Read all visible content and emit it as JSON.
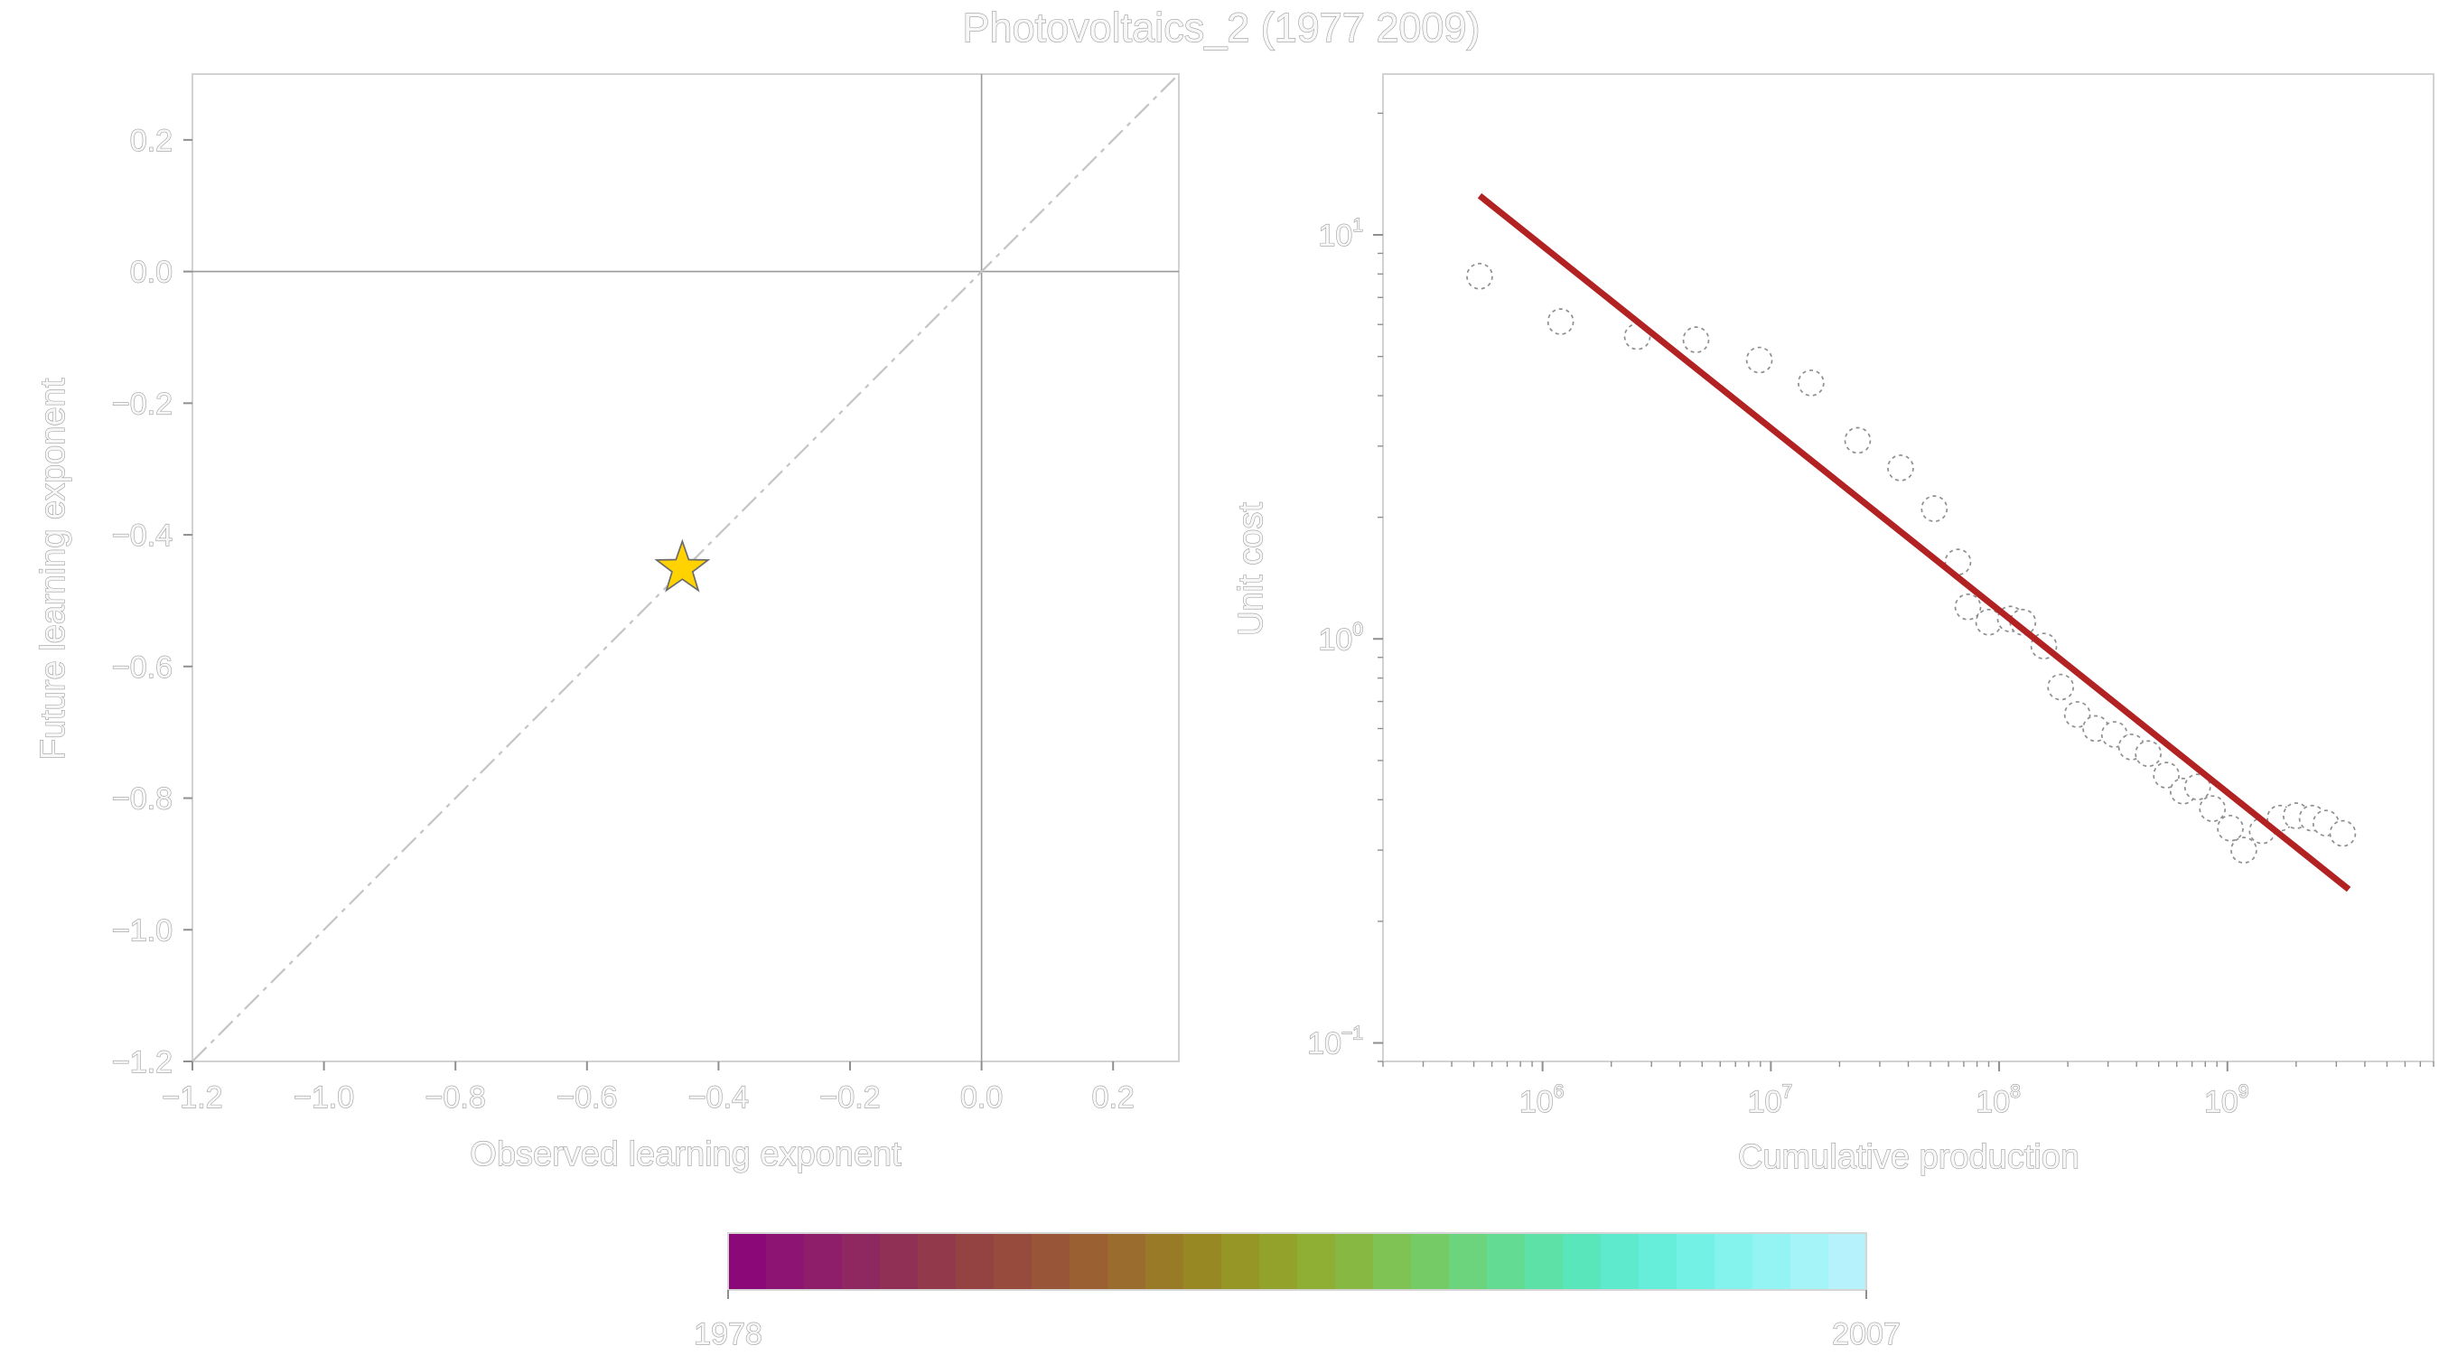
{
  "title": "Photovoltaics_2 (1977 2009)",
  "colors": {
    "fit_line": "#b22222",
    "star": "#ffd200",
    "reference_line": "#9a9a9a",
    "text": "#f7f7f7",
    "text_outline": "#9a9a9a"
  },
  "chart_data": [
    {
      "type": "scatter",
      "xlabel": "Observed learning exponent",
      "ylabel": "Future learning exponent",
      "xlim": [
        -1.2,
        0.3
      ],
      "ylim": [
        -1.2,
        0.3
      ],
      "xticks": [
        "−1.2",
        "−1.0",
        "−0.8",
        "−0.6",
        "−0.4",
        "−0.2",
        "0.0",
        "0.2"
      ],
      "xtick_values": [
        -1.2,
        -1.0,
        -0.8,
        -0.6,
        -0.4,
        -0.2,
        0.0,
        0.2
      ],
      "yticks": [
        "−1.2",
        "−1.0",
        "−0.8",
        "−0.6",
        "−0.4",
        "−0.2",
        "0.0",
        "0.2"
      ],
      "ytick_values": [
        -1.2,
        -1.0,
        -0.8,
        -0.6,
        -0.4,
        -0.2,
        0.0,
        0.2
      ],
      "reference_lines": [
        {
          "kind": "horizontal",
          "value": 0.0
        },
        {
          "kind": "vertical",
          "value": 0.0
        },
        {
          "kind": "diagonal",
          "from": [
            -1.2,
            -1.2
          ],
          "to": [
            0.3,
            0.3
          ]
        }
      ],
      "points": [
        {
          "x": -0.455,
          "y": -0.451,
          "marker": "star",
          "color": "#ffd200"
        }
      ],
      "grid": false,
      "legend": false
    },
    {
      "type": "scatter",
      "xlabel": "Cumulative production",
      "ylabel": "Unit cost",
      "xscale": "log",
      "yscale": "log",
      "xlim": [
        200000,
        8000000000
      ],
      "ylim": [
        0.09,
        25
      ],
      "xticks": [
        {
          "base": "10",
          "exp": "6",
          "value": 1000000
        },
        {
          "base": "10",
          "exp": "7",
          "value": 10000000
        },
        {
          "base": "10",
          "exp": "8",
          "value": 100000000
        },
        {
          "base": "10",
          "exp": "9",
          "value": 1000000000
        }
      ],
      "yticks": [
        {
          "base": "10",
          "exp": "−1",
          "value": 0.1
        },
        {
          "base": "10",
          "exp": "0",
          "value": 1
        },
        {
          "base": "10",
          "exp": "1",
          "value": 10
        }
      ],
      "points": [
        {
          "x": 530000,
          "y": 7.9
        },
        {
          "x": 1200000,
          "y": 6.1
        },
        {
          "x": 2600000,
          "y": 5.6
        },
        {
          "x": 4700000,
          "y": 5.5
        },
        {
          "x": 8900000,
          "y": 4.9
        },
        {
          "x": 15000000,
          "y": 4.3
        },
        {
          "x": 24000000,
          "y": 3.1
        },
        {
          "x": 37000000,
          "y": 2.65
        },
        {
          "x": 52000000,
          "y": 2.1
        },
        {
          "x": 66000000,
          "y": 1.55
        },
        {
          "x": 73000000,
          "y": 1.2
        },
        {
          "x": 90000000,
          "y": 1.1
        },
        {
          "x": 112000000,
          "y": 1.12
        },
        {
          "x": 127000000,
          "y": 1.1
        },
        {
          "x": 157000000,
          "y": 0.96
        },
        {
          "x": 186000000,
          "y": 0.76
        },
        {
          "x": 220000000,
          "y": 0.65
        },
        {
          "x": 265000000,
          "y": 0.6
        },
        {
          "x": 320000000,
          "y": 0.58
        },
        {
          "x": 380000000,
          "y": 0.54
        },
        {
          "x": 450000000,
          "y": 0.52
        },
        {
          "x": 540000000,
          "y": 0.46
        },
        {
          "x": 640000000,
          "y": 0.42
        },
        {
          "x": 740000000,
          "y": 0.43
        },
        {
          "x": 860000000,
          "y": 0.38
        },
        {
          "x": 1030000000,
          "y": 0.34
        },
        {
          "x": 1180000000,
          "y": 0.3
        },
        {
          "x": 1420000000,
          "y": 0.335
        },
        {
          "x": 1700000000,
          "y": 0.36
        },
        {
          "x": 2000000000,
          "y": 0.365
        },
        {
          "x": 2350000000,
          "y": 0.36
        },
        {
          "x": 2700000000,
          "y": 0.35
        },
        {
          "x": 3200000000,
          "y": 0.33
        }
      ],
      "fit_line": {
        "x": [
          530000,
          3400000000
        ],
        "y": [
          12.5,
          0.24
        ],
        "color": "#b22222"
      },
      "grid": false,
      "legend": false
    }
  ],
  "colorbar": {
    "min_label": "1978",
    "max_label": "2007",
    "start_year": 1978,
    "end_year": 2007,
    "colors": [
      "#8a0878",
      "#8d1472",
      "#8e1e69",
      "#8f2860",
      "#903055",
      "#92394c",
      "#954243",
      "#974b3d",
      "#995537",
      "#9a6031",
      "#9a6c2d",
      "#997a27",
      "#988824",
      "#969626",
      "#93a22b",
      "#8eae34",
      "#87b942",
      "#7fc354",
      "#75cc67",
      "#6bd47c",
      "#63db92",
      "#5de1a6",
      "#5ae6bb",
      "#5deacd",
      "#67eedb",
      "#74f1e5",
      "#84f3ed",
      "#94f4f3",
      "#a5f4f7",
      "#b5f2fb"
    ]
  }
}
